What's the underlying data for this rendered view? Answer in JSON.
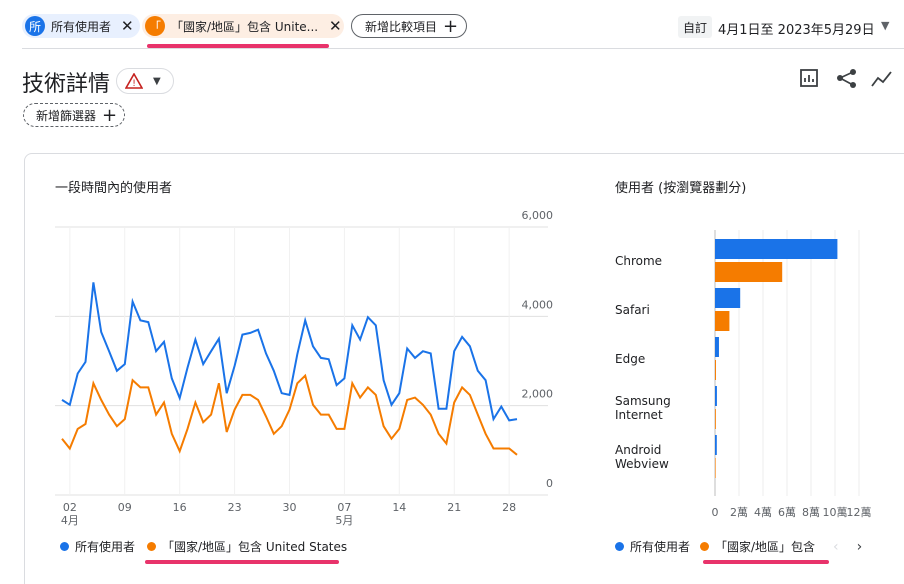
{
  "header": {
    "comparisons": [
      {
        "badge": "所",
        "label": "所有使用者",
        "color": "#1a73e8"
      },
      {
        "badge": "「",
        "label": "「國家/地區」包含 Unite...",
        "color": "#f57c00"
      }
    ],
    "add_comparison": "新增比較項目",
    "date_mode": "自訂",
    "date_range": "4月1日至 2023年5月29日"
  },
  "page_title": "技術詳情",
  "add_filter": "新增篩選器",
  "line_chart": {
    "chart_data": {
      "type": "line",
      "title": "一段時間內的使用者",
      "categories": [
        null,
        "02",
        null,
        null,
        null,
        null,
        null,
        null,
        "09",
        null,
        null,
        null,
        null,
        null,
        null,
        "16",
        null,
        null,
        null,
        null,
        null,
        null,
        "23",
        null,
        null,
        null,
        null,
        null,
        null,
        "30",
        null,
        null,
        null,
        null,
        null,
        null,
        "07",
        null,
        null,
        null,
        null,
        null,
        null,
        "14",
        null,
        null,
        null,
        null,
        null,
        null,
        "21",
        null,
        null,
        null,
        null,
        null,
        null,
        "28",
        null
      ],
      "months": [
        null,
        "4月",
        null,
        null,
        null,
        null,
        null,
        null,
        null,
        null,
        null,
        null,
        null,
        null,
        null,
        null,
        null,
        null,
        null,
        null,
        null,
        null,
        null,
        null,
        null,
        null,
        null,
        null,
        null,
        null,
        null,
        null,
        null,
        null,
        null,
        null,
        "5月",
        null,
        null,
        null,
        null,
        null,
        null,
        null,
        null,
        null,
        null,
        null,
        null,
        null,
        null,
        null,
        null,
        null,
        null,
        null,
        null,
        null,
        null
      ],
      "series": [
        {
          "name": "所有使用者",
          "color": "#1a73e8",
          "values": [
            2130,
            2020,
            2720,
            2980,
            4760,
            3650,
            3220,
            2780,
            2930,
            4330,
            3910,
            3870,
            3220,
            3430,
            2610,
            2170,
            2850,
            3480,
            2930,
            3220,
            3500,
            2280,
            2890,
            3590,
            3630,
            3700,
            3170,
            2780,
            2280,
            2240,
            3150,
            3910,
            3330,
            3070,
            3040,
            2460,
            2610,
            3800,
            3480,
            3980,
            3800,
            2570,
            2020,
            2280,
            3280,
            3070,
            3220,
            3170,
            1930,
            1930,
            3220,
            3540,
            3330,
            2780,
            2570,
            1700,
            1980,
            1670,
            1700
          ]
        },
        {
          "name": "「國家/地區」包含 United States",
          "color": "#f57c00",
          "values": [
            1260,
            1040,
            1480,
            1590,
            2500,
            2130,
            1800,
            1540,
            1700,
            2570,
            2410,
            2410,
            1800,
            2070,
            1370,
            980,
            1480,
            2070,
            1630,
            1800,
            2500,
            1410,
            1910,
            2240,
            2240,
            2130,
            1760,
            1370,
            1540,
            1910,
            2500,
            2670,
            2020,
            1800,
            1800,
            1480,
            1480,
            2500,
            2180,
            2410,
            2240,
            1540,
            1260,
            1480,
            2130,
            2180,
            2020,
            1800,
            1370,
            1150,
            2070,
            2410,
            2240,
            1800,
            1370,
            1040,
            1040,
            1040,
            900
          ]
        }
      ],
      "ylim": [
        0,
        6000
      ],
      "yticks": [
        0,
        {
          "value": 2000,
          "label": "2,000"
        },
        {
          "value": 4000,
          "label": "4,000"
        },
        {
          "value": 6000,
          "label": "6,000"
        }
      ],
      "grid": true
    }
  },
  "bar_chart": {
    "chart_data": {
      "type": "bar",
      "orientation": "horizontal",
      "title": "使用者 (按瀏覽器劃分)",
      "categories": [
        "Chrome",
        "Safari",
        "Edge",
        "Samsung Internet",
        "Android Webview"
      ],
      "series": [
        {
          "name": "所有使用者",
          "color": "#1a73e8",
          "values": [
            102000,
            21000,
            3300,
            1600,
            1500
          ]
        },
        {
          "name": "「國家/地區」包含 United States",
          "color": "#f57c00",
          "values": [
            56000,
            12000,
            800,
            700,
            500
          ]
        }
      ],
      "xlim": [
        0,
        120000
      ],
      "xticks": [
        0,
        {
          "value": 20000,
          "label": "2萬"
        },
        {
          "value": 40000,
          "label": "4萬"
        },
        {
          "value": 60000,
          "label": "6萬"
        },
        {
          "value": 80000,
          "label": "8萬"
        },
        {
          "value": 100000,
          "label": "10萬"
        },
        {
          "value": 120000,
          "label": "12萬"
        }
      ],
      "grid": true
    }
  }
}
